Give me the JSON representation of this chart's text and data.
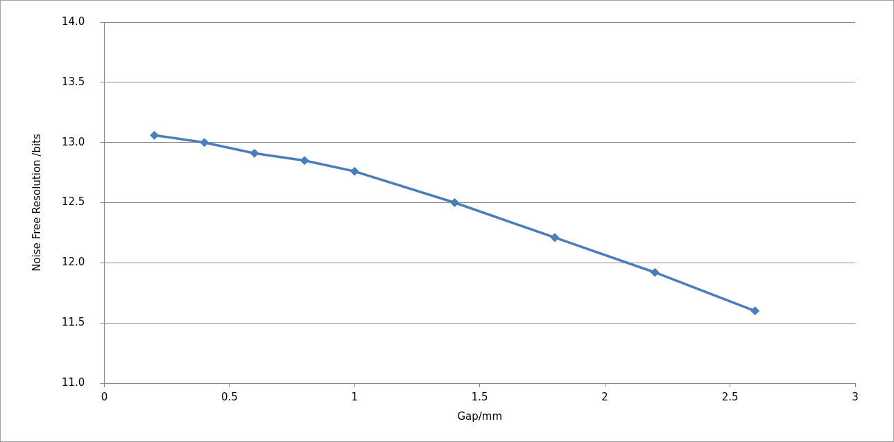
{
  "chart_data": {
    "type": "line",
    "xlabel": "Gap/mm",
    "ylabel": "Noise Free Resolution /bits",
    "x": [
      0.2,
      0.4,
      0.6,
      0.8,
      1.0,
      1.4,
      1.8,
      2.2,
      2.6
    ],
    "series": [
      {
        "color": "#4a7ebb",
        "values": [
          13.06,
          13.0,
          12.91,
          12.85,
          12.76,
          12.5,
          12.21,
          11.92,
          11.6
        ]
      }
    ],
    "xlim": [
      0,
      3
    ],
    "xticks": [
      0,
      0.5,
      1,
      1.5,
      2,
      2.5,
      3
    ],
    "ylim": [
      11,
      14
    ],
    "yticks": [
      {
        "value": 11,
        "label": "11.0"
      },
      {
        "value": 11.5,
        "label": "11.5"
      },
      {
        "value": 12,
        "label": "12.0"
      },
      {
        "value": 12.5,
        "label": "12.5"
      },
      {
        "value": 13,
        "label": "13.0"
      },
      {
        "value": 13.5,
        "label": "13.5"
      },
      {
        "value": 14,
        "label": "14.0"
      }
    ],
    "grid": "y",
    "legend": false,
    "marker": "diamond",
    "line_style": "solid"
  }
}
